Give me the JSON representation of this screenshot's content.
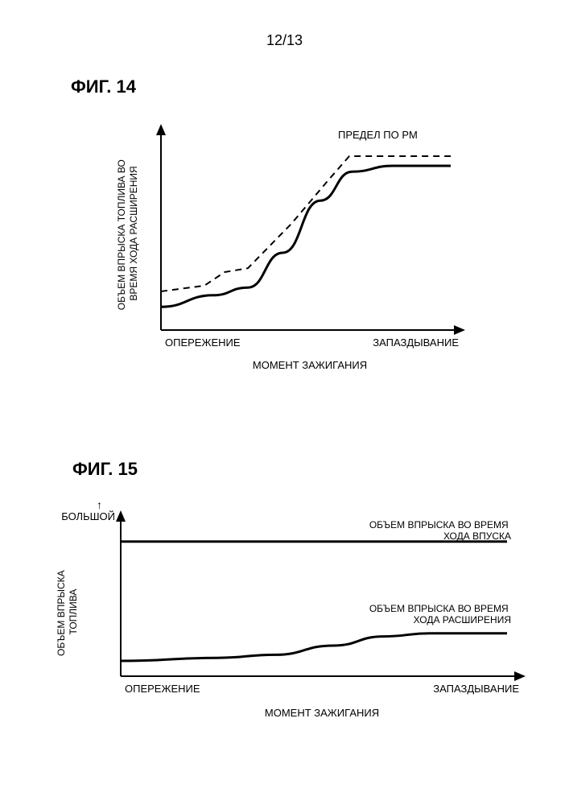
{
  "page": {
    "number_label": "12/13"
  },
  "fig14": {
    "title": "ФИГ. 14",
    "y_axis_label": "ОБЪЕМ ВПРЫСКА ТОПЛИВА ВО\nВРЕМЯ ХОДА РАСШИРЕНИЯ",
    "x_axis_label": "МОМЕНТ ЗАЖИГАНИЯ",
    "x_left_label": "ОПЕРЕЖЕНИЕ",
    "x_right_label": "ЗАПАЗДЫВАНИЕ",
    "series_dashed_label": "ПРЕДЕЛ ПО PM",
    "chart": {
      "type": "line",
      "background_color": "#ffffff",
      "axis_color": "#000000",
      "solid_line_color": "#000000",
      "dashed_line_color": "#000000",
      "line_width_solid": 3,
      "line_width_dashed": 2,
      "dash_pattern": "8,6",
      "label_fontsize": 12,
      "xlim": [
        0,
        100
      ],
      "ylim": [
        0,
        100
      ],
      "solid_points": [
        [
          0,
          12
        ],
        [
          18,
          18
        ],
        [
          30,
          22
        ],
        [
          42,
          40
        ],
        [
          55,
          67
        ],
        [
          66,
          82
        ],
        [
          80,
          85
        ],
        [
          100,
          85
        ]
      ],
      "dashed_points": [
        [
          0,
          20
        ],
        [
          15,
          23
        ],
        [
          22,
          30
        ],
        [
          30,
          32
        ],
        [
          45,
          55
        ],
        [
          58,
          78
        ],
        [
          65,
          90
        ],
        [
          100,
          90
        ]
      ]
    }
  },
  "fig15": {
    "title": "ФИГ. 15",
    "y_axis_label": "ОБЪЕМ ВПРЫСКА\nТОПЛИВА",
    "y_top_marker": "БОЛЬШОЙ",
    "x_axis_label": "МОМЕНТ ЗАЖИГАНИЯ",
    "x_left_label": "ОПЕРЕЖЕНИЕ",
    "x_right_label": "ЗАПАЗДЫВАНИЕ",
    "series1_label": "ОБЪЕМ ВПРЫСКА ВО ВРЕМЯ\nХОДА ВПУСКА",
    "series2_label": "ОБЪЕМ ВПРЫСКА ВО ВРЕМЯ\nХОДА РАСШИРЕНИЯ",
    "chart": {
      "type": "line",
      "background_color": "#ffffff",
      "axis_color": "#000000",
      "line_color": "#000000",
      "line_width": 3,
      "label_fontsize": 12,
      "xlim": [
        0,
        100
      ],
      "ylim": [
        0,
        100
      ],
      "series1_points": [
        [
          0,
          88
        ],
        [
          100,
          88
        ]
      ],
      "series2_points": [
        [
          0,
          10
        ],
        [
          25,
          12
        ],
        [
          40,
          14
        ],
        [
          55,
          20
        ],
        [
          68,
          26
        ],
        [
          80,
          28
        ],
        [
          100,
          28
        ]
      ]
    }
  }
}
